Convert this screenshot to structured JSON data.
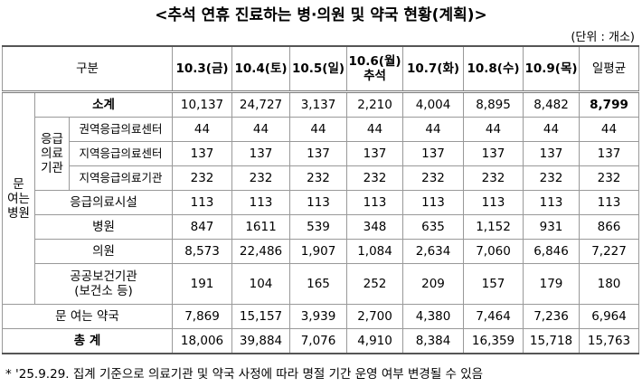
{
  "title": "<추석 연휴 진료하는 병·의원 및 약국 현황(계획)>",
  "unit": "(단위 : 개소)",
  "table": {
    "header": [
      "구분",
      "10.3(금)",
      "10.4(토)",
      "10.5(일)",
      "10.6(월)\n추석",
      "10.7(화)",
      "10.8(수)",
      "10.9(목)",
      "일평균"
    ],
    "group_label": "문\n여는\n병원",
    "subgroup_label": "응급\n의료\n기관",
    "rows": [
      {
        "label": "소계",
        "values": [
          "10,137",
          "24,727",
          "3,137",
          "2,210",
          "4,004",
          "8,895",
          "8,482",
          "8,799"
        ]
      },
      {
        "label": "권역응급의료센터",
        "values": [
          "44",
          "44",
          "44",
          "44",
          "44",
          "44",
          "44",
          "44"
        ]
      },
      {
        "label": "지역응급의료센터",
        "values": [
          "137",
          "137",
          "137",
          "137",
          "137",
          "137",
          "137",
          "137"
        ]
      },
      {
        "label": "지역응급의료기관",
        "values": [
          "232",
          "232",
          "232",
          "232",
          "232",
          "232",
          "232",
          "232"
        ]
      },
      {
        "label": "응급의료시설",
        "values": [
          "113",
          "113",
          "113",
          "113",
          "113",
          "113",
          "113",
          "113"
        ]
      },
      {
        "label": "병원",
        "values": [
          "847",
          "1611",
          "539",
          "348",
          "635",
          "1,152",
          "931",
          "866"
        ]
      },
      {
        "label": "의원",
        "values": [
          "8,573",
          "22,486",
          "1,907",
          "1,084",
          "2,634",
          "7,060",
          "6,846",
          "7,227"
        ]
      },
      {
        "label": "공공보건기관\n(보건소 등)",
        "values": [
          "191",
          "104",
          "165",
          "252",
          "209",
          "157",
          "179",
          "180"
        ]
      },
      {
        "label": "문 여는 약국",
        "values": [
          "7,869",
          "15,157",
          "3,939",
          "2,700",
          "4,380",
          "7,464",
          "7,236",
          "6,964"
        ]
      },
      {
        "label": "총 계",
        "values": [
          "18,006",
          "39,884",
          "7,076",
          "4,910",
          "8,384",
          "16,359",
          "15,718",
          "15,763"
        ]
      }
    ]
  },
  "footnote": "* '25.9.29. 집계 기준으로 의료기관 및 약국 사정에 따라 명절 기간 운영 여부 변경될 수 있음"
}
